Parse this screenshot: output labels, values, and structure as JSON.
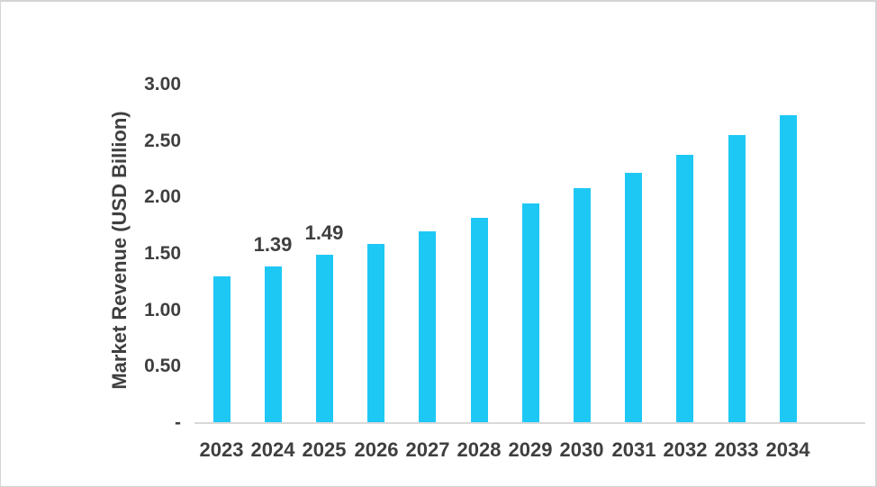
{
  "page": {
    "background": "#FFFFFF",
    "border_color": "#D4D4D4"
  },
  "chart_data": {
    "type": "bar",
    "title": "",
    "ylabel": "Market Revenue (USD Billion)",
    "xlabel": "",
    "categories": [
      "2023",
      "2024",
      "2025",
      "2026",
      "2027",
      "2028",
      "2029",
      "2030",
      "2031",
      "2032",
      "2033",
      "2034"
    ],
    "values": [
      1.3,
      1.39,
      1.49,
      1.59,
      1.7,
      1.82,
      1.95,
      2.08,
      2.22,
      2.38,
      2.55,
      2.73
    ],
    "data_labels": [
      "",
      "1.39",
      "1.49",
      "",
      "",
      "",
      "",
      "",
      "",
      "",
      "",
      ""
    ],
    "ylim": [
      0,
      3
    ],
    "yticks": [
      {
        "label": "3.00",
        "value": 3.0
      },
      {
        "label": "2.50",
        "value": 2.5
      },
      {
        "label": "2.00",
        "value": 2.0
      },
      {
        "label": "1.50",
        "value": 1.5
      },
      {
        "label": "1.00",
        "value": 1.0
      },
      {
        "label": "0.50",
        "value": 0.5
      },
      {
        "label": "-",
        "value": 0.0
      }
    ],
    "grid": false,
    "legend": "none",
    "bar_color": "#1EC8F5",
    "text_color": "#3F3F3F",
    "axis_line_color": "#D9D9D9"
  }
}
